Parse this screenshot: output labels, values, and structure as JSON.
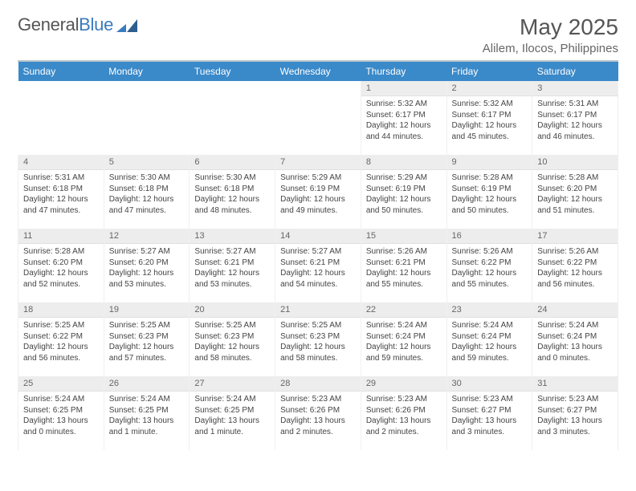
{
  "logo": {
    "text_a": "General",
    "text_b": "Blue"
  },
  "title": "May 2025",
  "location": "Alilem, Ilocos, Philippines",
  "colors": {
    "header_bg": "#3a89c9",
    "header_text": "#ffffff",
    "daynum_bg": "#ededed",
    "rule": "#b9c4cd",
    "text": "#444444",
    "logo_gray": "#555555",
    "logo_blue": "#3a7bbf"
  },
  "typography": {
    "title_fontsize": 28,
    "location_fontsize": 15,
    "weekday_fontsize": 12,
    "daynum_fontsize": 11,
    "daybody_fontsize": 10
  },
  "weekdays": [
    "Sunday",
    "Monday",
    "Tuesday",
    "Wednesday",
    "Thursday",
    "Friday",
    "Saturday"
  ],
  "layout": {
    "columns": 7,
    "rows": 5,
    "first_weekday_index": 4
  },
  "labels": {
    "sunrise": "Sunrise:",
    "sunset": "Sunset:",
    "daylight": "Daylight:"
  },
  "days": [
    {
      "n": 1,
      "sunrise": "5:32 AM",
      "sunset": "6:17 PM",
      "daylight": "12 hours and 44 minutes."
    },
    {
      "n": 2,
      "sunrise": "5:32 AM",
      "sunset": "6:17 PM",
      "daylight": "12 hours and 45 minutes."
    },
    {
      "n": 3,
      "sunrise": "5:31 AM",
      "sunset": "6:17 PM",
      "daylight": "12 hours and 46 minutes."
    },
    {
      "n": 4,
      "sunrise": "5:31 AM",
      "sunset": "6:18 PM",
      "daylight": "12 hours and 47 minutes."
    },
    {
      "n": 5,
      "sunrise": "5:30 AM",
      "sunset": "6:18 PM",
      "daylight": "12 hours and 47 minutes."
    },
    {
      "n": 6,
      "sunrise": "5:30 AM",
      "sunset": "6:18 PM",
      "daylight": "12 hours and 48 minutes."
    },
    {
      "n": 7,
      "sunrise": "5:29 AM",
      "sunset": "6:19 PM",
      "daylight": "12 hours and 49 minutes."
    },
    {
      "n": 8,
      "sunrise": "5:29 AM",
      "sunset": "6:19 PM",
      "daylight": "12 hours and 50 minutes."
    },
    {
      "n": 9,
      "sunrise": "5:28 AM",
      "sunset": "6:19 PM",
      "daylight": "12 hours and 50 minutes."
    },
    {
      "n": 10,
      "sunrise": "5:28 AM",
      "sunset": "6:20 PM",
      "daylight": "12 hours and 51 minutes."
    },
    {
      "n": 11,
      "sunrise": "5:28 AM",
      "sunset": "6:20 PM",
      "daylight": "12 hours and 52 minutes."
    },
    {
      "n": 12,
      "sunrise": "5:27 AM",
      "sunset": "6:20 PM",
      "daylight": "12 hours and 53 minutes."
    },
    {
      "n": 13,
      "sunrise": "5:27 AM",
      "sunset": "6:21 PM",
      "daylight": "12 hours and 53 minutes."
    },
    {
      "n": 14,
      "sunrise": "5:27 AM",
      "sunset": "6:21 PM",
      "daylight": "12 hours and 54 minutes."
    },
    {
      "n": 15,
      "sunrise": "5:26 AM",
      "sunset": "6:21 PM",
      "daylight": "12 hours and 55 minutes."
    },
    {
      "n": 16,
      "sunrise": "5:26 AM",
      "sunset": "6:22 PM",
      "daylight": "12 hours and 55 minutes."
    },
    {
      "n": 17,
      "sunrise": "5:26 AM",
      "sunset": "6:22 PM",
      "daylight": "12 hours and 56 minutes."
    },
    {
      "n": 18,
      "sunrise": "5:25 AM",
      "sunset": "6:22 PM",
      "daylight": "12 hours and 56 minutes."
    },
    {
      "n": 19,
      "sunrise": "5:25 AM",
      "sunset": "6:23 PM",
      "daylight": "12 hours and 57 minutes."
    },
    {
      "n": 20,
      "sunrise": "5:25 AM",
      "sunset": "6:23 PM",
      "daylight": "12 hours and 58 minutes."
    },
    {
      "n": 21,
      "sunrise": "5:25 AM",
      "sunset": "6:23 PM",
      "daylight": "12 hours and 58 minutes."
    },
    {
      "n": 22,
      "sunrise": "5:24 AM",
      "sunset": "6:24 PM",
      "daylight": "12 hours and 59 minutes."
    },
    {
      "n": 23,
      "sunrise": "5:24 AM",
      "sunset": "6:24 PM",
      "daylight": "12 hours and 59 minutes."
    },
    {
      "n": 24,
      "sunrise": "5:24 AM",
      "sunset": "6:24 PM",
      "daylight": "13 hours and 0 minutes."
    },
    {
      "n": 25,
      "sunrise": "5:24 AM",
      "sunset": "6:25 PM",
      "daylight": "13 hours and 0 minutes."
    },
    {
      "n": 26,
      "sunrise": "5:24 AM",
      "sunset": "6:25 PM",
      "daylight": "13 hours and 1 minute."
    },
    {
      "n": 27,
      "sunrise": "5:24 AM",
      "sunset": "6:25 PM",
      "daylight": "13 hours and 1 minute."
    },
    {
      "n": 28,
      "sunrise": "5:23 AM",
      "sunset": "6:26 PM",
      "daylight": "13 hours and 2 minutes."
    },
    {
      "n": 29,
      "sunrise": "5:23 AM",
      "sunset": "6:26 PM",
      "daylight": "13 hours and 2 minutes."
    },
    {
      "n": 30,
      "sunrise": "5:23 AM",
      "sunset": "6:27 PM",
      "daylight": "13 hours and 3 minutes."
    },
    {
      "n": 31,
      "sunrise": "5:23 AM",
      "sunset": "6:27 PM",
      "daylight": "13 hours and 3 minutes."
    }
  ]
}
